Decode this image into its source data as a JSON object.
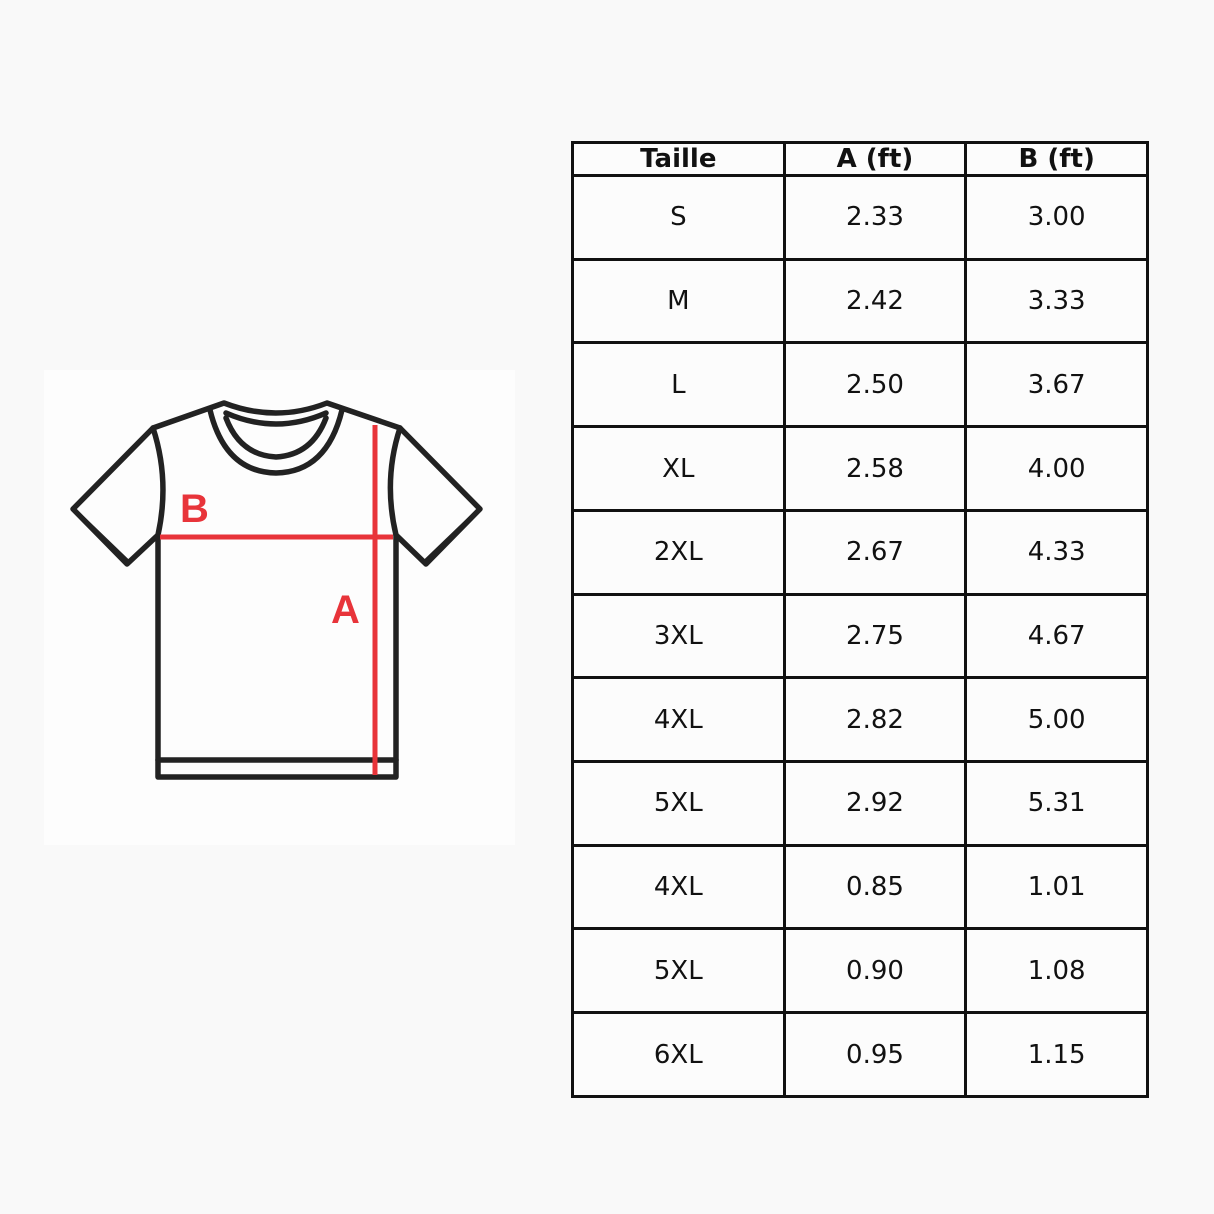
{
  "diagram": {
    "label_a": "A",
    "label_b": "B",
    "outline_color": "#222222",
    "measure_color": "#e8343a"
  },
  "table": {
    "headers": [
      "Taille",
      "A (ft)",
      "B (ft)"
    ],
    "rows": [
      [
        "S",
        "2.33",
        "3.00"
      ],
      [
        "M",
        "2.42",
        "3.33"
      ],
      [
        "L",
        "2.50",
        "3.67"
      ],
      [
        "XL",
        "2.58",
        "4.00"
      ],
      [
        "2XL",
        "2.67",
        "4.33"
      ],
      [
        "3XL",
        "2.75",
        "4.67"
      ],
      [
        "4XL",
        "2.82",
        "5.00"
      ],
      [
        "5XL",
        "2.92",
        "5.31"
      ],
      [
        "4XL",
        "0.85",
        "1.01"
      ],
      [
        "5XL",
        "0.90",
        "1.08"
      ],
      [
        "6XL",
        "0.95",
        "1.15"
      ]
    ]
  }
}
